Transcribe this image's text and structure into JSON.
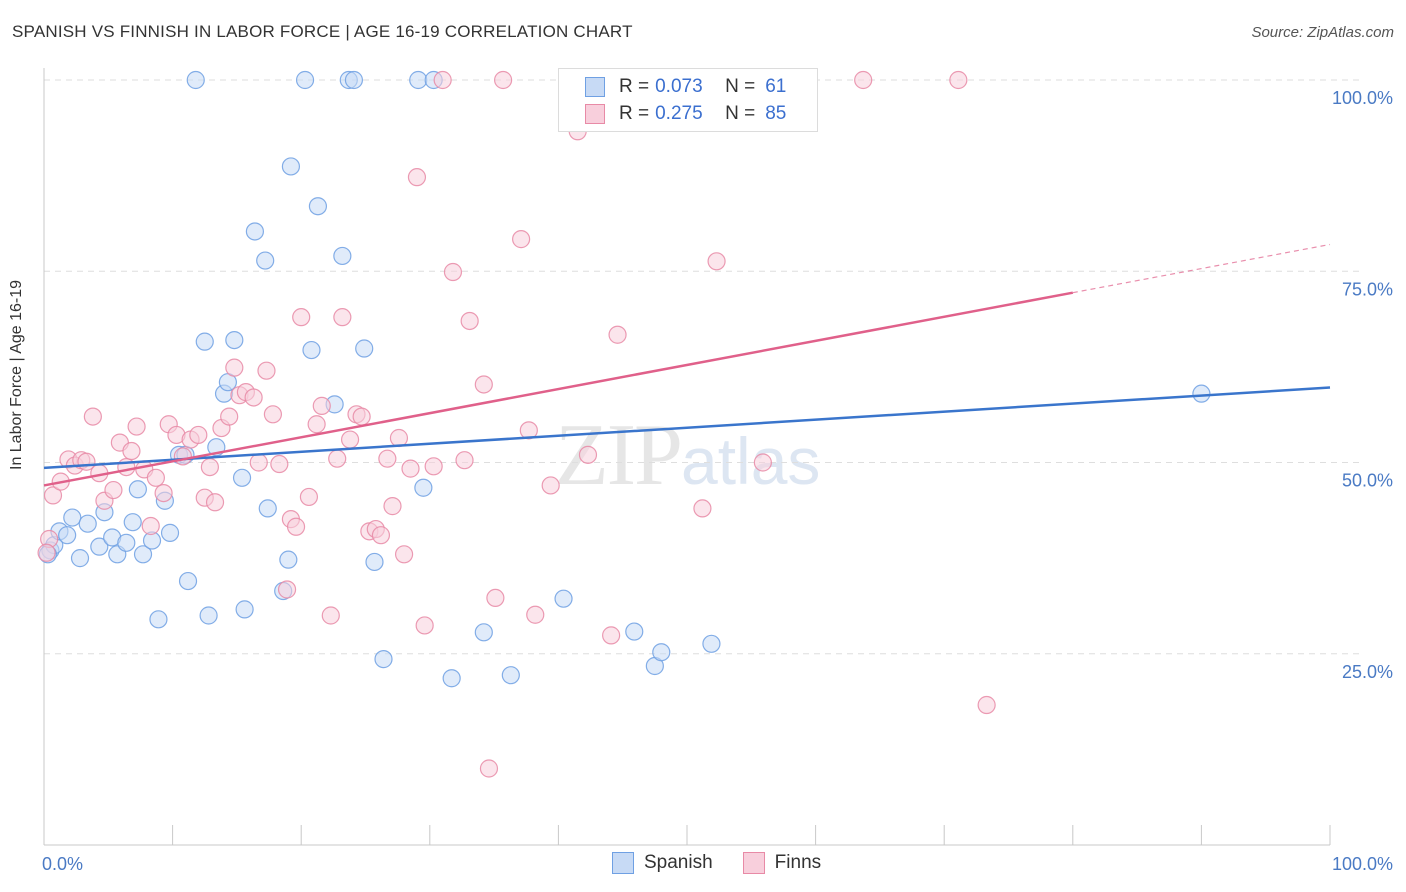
{
  "title": "SPANISH VS FINNISH IN LABOR FORCE | AGE 16-19 CORRELATION CHART",
  "source": "Source: ZipAtlas.com",
  "watermark": {
    "a": "ZIP",
    "b": "atlas"
  },
  "legend_top": [
    {
      "r_label": "R =",
      "r_value": "0.073",
      "n_label": "N =",
      "n_value": "61",
      "color": "#6fa0e3",
      "fill": "#c7daf5"
    },
    {
      "r_label": "R =",
      "r_value": "0.275",
      "n_label": "N =",
      "n_value": "85",
      "color": "#e88aa6",
      "fill": "#f8cfdc"
    }
  ],
  "legend_bottom": [
    {
      "label": "Spanish",
      "color": "#6fa0e3",
      "fill": "#c7daf5"
    },
    {
      "label": "Finns",
      "color": "#e88aa6",
      "fill": "#f8cfdc"
    }
  ],
  "chart_data": {
    "type": "scatter",
    "title": "SPANISH VS FINNISH IN LABOR FORCE | AGE 16-19 CORRELATION CHART",
    "xlabel": "",
    "ylabel": "In Labor Force | Age 16-19",
    "xlim": [
      0,
      100
    ],
    "ylim": [
      0,
      100
    ],
    "x_tick_labels": [
      "0.0%",
      "100.0%"
    ],
    "y_ticks": [
      25,
      50,
      75,
      100
    ],
    "y_tick_labels": [
      "25.0%",
      "50.0%",
      "75.0%",
      "100.0%"
    ],
    "grid": true,
    "legend_position": "bottom",
    "series": [
      {
        "name": "Spanish",
        "color": "#6fa0e3",
        "fill": "#c7daf5",
        "trend": {
          "x": [
            0,
            100
          ],
          "y": [
            49.3,
            59.8
          ],
          "dashed_after": null,
          "color": "#3a75cc"
        },
        "points": [
          [
            0.5,
            38.5
          ],
          [
            0.8,
            39.2
          ],
          [
            1.2,
            41.0
          ],
          [
            1.8,
            40.5
          ],
          [
            2.2,
            42.8
          ],
          [
            2.8,
            37.5
          ],
          [
            3.4,
            42.0
          ],
          [
            4.3,
            39.0
          ],
          [
            4.7,
            43.5
          ],
          [
            5.3,
            40.2
          ],
          [
            5.7,
            38.0
          ],
          [
            6.4,
            39.5
          ],
          [
            6.9,
            42.2
          ],
          [
            7.3,
            46.5
          ],
          [
            7.7,
            38.0
          ],
          [
            8.4,
            39.8
          ],
          [
            8.9,
            29.5
          ],
          [
            9.4,
            45.0
          ],
          [
            9.8,
            40.8
          ],
          [
            10.5,
            51.0
          ],
          [
            11.0,
            51.0
          ],
          [
            11.2,
            34.5
          ],
          [
            11.8,
            100
          ],
          [
            12.5,
            65.8
          ],
          [
            12.8,
            30.0
          ],
          [
            13.4,
            52.0
          ],
          [
            14.0,
            59.0
          ],
          [
            14.3,
            60.5
          ],
          [
            14.8,
            66.0
          ],
          [
            15.4,
            48.0
          ],
          [
            15.6,
            30.8
          ],
          [
            16.4,
            80.2
          ],
          [
            17.2,
            76.4
          ],
          [
            17.4,
            44.0
          ],
          [
            18.6,
            33.2
          ],
          [
            19.0,
            37.3
          ],
          [
            19.2,
            88.7
          ],
          [
            20.3,
            100
          ],
          [
            20.8,
            64.7
          ],
          [
            21.3,
            83.5
          ],
          [
            22.6,
            57.6
          ],
          [
            23.2,
            77.0
          ],
          [
            23.7,
            100
          ],
          [
            24.1,
            100
          ],
          [
            24.9,
            64.9
          ],
          [
            25.7,
            37.0
          ],
          [
            26.4,
            24.3
          ],
          [
            29.1,
            100
          ],
          [
            29.5,
            46.7
          ],
          [
            30.3,
            100
          ],
          [
            31.7,
            21.8
          ],
          [
            34.2,
            27.8
          ],
          [
            36.3,
            22.2
          ],
          [
            40.4,
            32.2
          ],
          [
            45.9,
            27.9
          ],
          [
            47.5,
            23.4
          ],
          [
            48.0,
            25.2
          ],
          [
            51.9,
            26.3
          ],
          [
            52.1,
            100
          ],
          [
            90.0,
            59.0
          ],
          [
            0.3,
            38.0
          ]
        ]
      },
      {
        "name": "Finns",
        "color": "#e88aa6",
        "fill": "#f8cfdc",
        "trend": {
          "x": [
            0,
            100
          ],
          "y": [
            47.0,
            78.5
          ],
          "dashed_after": 80,
          "color": "#e0608a"
        },
        "points": [
          [
            0.4,
            40.0
          ],
          [
            0.7,
            45.7
          ],
          [
            1.3,
            47.5
          ],
          [
            1.9,
            50.4
          ],
          [
            2.4,
            49.6
          ],
          [
            2.9,
            50.3
          ],
          [
            3.3,
            50.1
          ],
          [
            3.8,
            56.0
          ],
          [
            4.3,
            48.6
          ],
          [
            4.7,
            45.0
          ],
          [
            5.4,
            46.4
          ],
          [
            5.9,
            52.6
          ],
          [
            6.4,
            49.4
          ],
          [
            6.8,
            51.5
          ],
          [
            7.2,
            54.7
          ],
          [
            7.8,
            49.1
          ],
          [
            8.3,
            41.7
          ],
          [
            8.7,
            48.0
          ],
          [
            9.3,
            46.0
          ],
          [
            9.7,
            55.0
          ],
          [
            10.3,
            53.6
          ],
          [
            10.8,
            50.8
          ],
          [
            11.4,
            53.0
          ],
          [
            12.0,
            53.6
          ],
          [
            12.5,
            45.4
          ],
          [
            12.9,
            49.4
          ],
          [
            13.3,
            44.8
          ],
          [
            13.8,
            54.5
          ],
          [
            14.4,
            56.0
          ],
          [
            14.8,
            62.4
          ],
          [
            15.2,
            58.8
          ],
          [
            15.7,
            59.2
          ],
          [
            16.3,
            58.5
          ],
          [
            16.7,
            50.0
          ],
          [
            17.3,
            62.0
          ],
          [
            17.8,
            56.3
          ],
          [
            18.3,
            49.8
          ],
          [
            18.9,
            33.4
          ],
          [
            19.2,
            42.6
          ],
          [
            19.6,
            41.6
          ],
          [
            20.0,
            69.0
          ],
          [
            20.6,
            45.5
          ],
          [
            21.2,
            55.0
          ],
          [
            21.6,
            57.4
          ],
          [
            22.3,
            30.0
          ],
          [
            22.8,
            50.5
          ],
          [
            23.2,
            69.0
          ],
          [
            23.8,
            53.0
          ],
          [
            24.3,
            56.3
          ],
          [
            24.7,
            56.0
          ],
          [
            25.3,
            41.0
          ],
          [
            25.8,
            41.3
          ],
          [
            26.2,
            40.5
          ],
          [
            26.7,
            50.5
          ],
          [
            27.1,
            44.3
          ],
          [
            27.6,
            53.2
          ],
          [
            28.0,
            38.0
          ],
          [
            28.5,
            49.2
          ],
          [
            29.0,
            87.3
          ],
          [
            29.6,
            28.7
          ],
          [
            30.3,
            49.5
          ],
          [
            31.0,
            100
          ],
          [
            31.8,
            74.9
          ],
          [
            32.7,
            50.3
          ],
          [
            33.1,
            68.5
          ],
          [
            34.2,
            60.2
          ],
          [
            34.6,
            10.0
          ],
          [
            35.1,
            32.3
          ],
          [
            35.7,
            100
          ],
          [
            37.1,
            79.2
          ],
          [
            37.7,
            54.2
          ],
          [
            38.2,
            30.1
          ],
          [
            39.4,
            47.0
          ],
          [
            41.0,
            100
          ],
          [
            41.5,
            93.3
          ],
          [
            42.3,
            51.0
          ],
          [
            44.1,
            27.4
          ],
          [
            44.6,
            66.7
          ],
          [
            51.2,
            44.0
          ],
          [
            52.3,
            76.3
          ],
          [
            55.9,
            50.0
          ],
          [
            63.7,
            100
          ],
          [
            71.1,
            100
          ],
          [
            73.3,
            18.3
          ],
          [
            0.2,
            38.2
          ]
        ]
      }
    ]
  }
}
